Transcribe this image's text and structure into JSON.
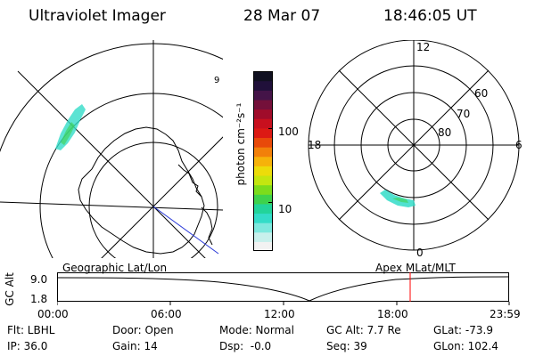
{
  "header": {
    "title": "Ultraviolet Imager",
    "date": "28 Mar 07",
    "time": "18:46:05 UT"
  },
  "colorbar": {
    "unit_label": "photon cm⁻²s⁻¹",
    "ticks": [
      {
        "label": "100",
        "value": 100
      },
      {
        "label": "10",
        "value": 10
      }
    ],
    "colors": [
      "#f2f2f2",
      "#c8f0ec",
      "#7ee8de",
      "#33dcc8",
      "#22d49a",
      "#3ed24c",
      "#7cdc1c",
      "#c4e610",
      "#ecdc0a",
      "#f6b20a",
      "#f2800a",
      "#e84a0a",
      "#dc1a14",
      "#c8101e",
      "#a00c2a",
      "#74103a",
      "#441448",
      "#20103a",
      "#101020"
    ]
  },
  "geo_panel": {
    "label": "Geographic Lat/Lon",
    "number_label": "9"
  },
  "polar_panel": {
    "label": "Apex MLat/MLT",
    "mlt_labels": {
      "top": "12",
      "left": "18",
      "right": "6",
      "bottom": "0"
    },
    "mlat_labels": [
      "60",
      "70",
      "80"
    ]
  },
  "altitude_plot": {
    "ylabel": "GC Alt",
    "y_ticks": [
      "9.0",
      "1.8"
    ],
    "x_ticks": [
      "00:00",
      "06:00",
      "12:00",
      "18:00",
      "23:59"
    ],
    "marker_color": "#ff0000"
  },
  "status": {
    "filter": "Flt: LBHL",
    "ip": "IP: 36.0",
    "door": "Door: Open",
    "gain": "Gain: 14",
    "mode": "Mode: Normal",
    "dsp": "Dsp:  -0.0",
    "gc_alt": "GC Alt: 7.7 Re",
    "seq": "Seq: 39",
    "glat": "GLat: -73.9",
    "glon": "GLon: 102.4"
  }
}
